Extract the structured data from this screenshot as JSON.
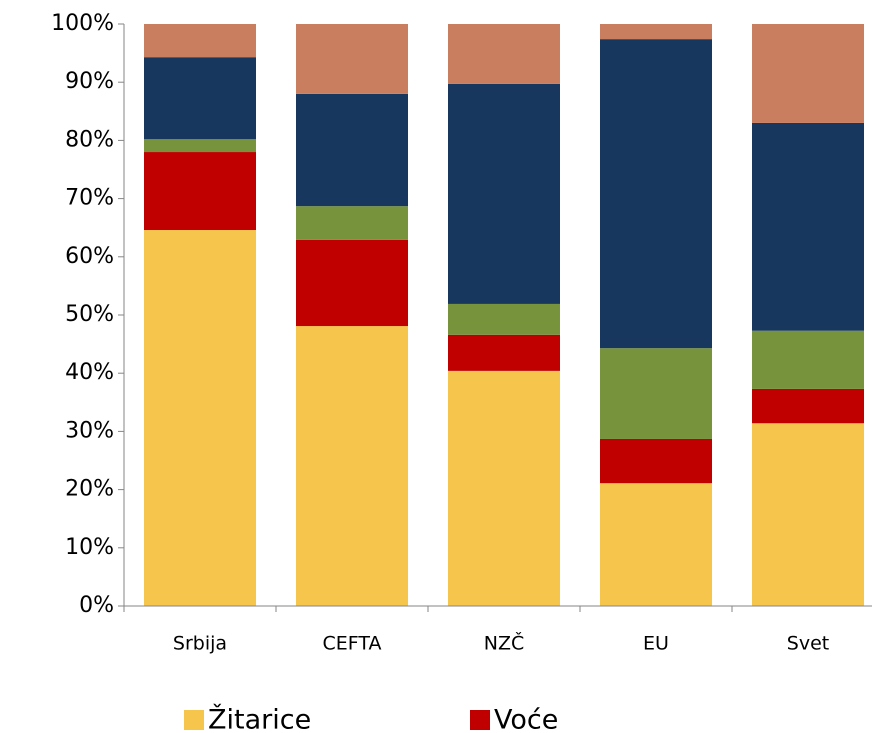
{
  "chart_data": {
    "type": "stacked_bar",
    "categories": [
      "Srbija",
      "CEFTA",
      "NZČ",
      "EU",
      "Svet"
    ],
    "series": [
      {
        "name": "Žitarice",
        "color": "#f6c54c",
        "values": [
          64.6,
          48.1,
          40.4,
          21.1,
          31.4
        ]
      },
      {
        "name": "Voće",
        "color": "#c00000",
        "values": [
          13.4,
          14.8,
          6.2,
          7.6,
          5.9
        ]
      },
      {
        "color": "#77933c",
        "values": [
          2.2,
          5.8,
          5.3,
          15.6,
          10.0
        ]
      },
      {
        "color": "#17375e",
        "values": [
          14.1,
          19.3,
          37.8,
          53.1,
          35.7
        ]
      },
      {
        "color": "#c97e5f",
        "values": [
          5.7,
          12.0,
          10.3,
          2.6,
          17.0
        ]
      }
    ],
    "ylim": [
      0,
      100
    ],
    "yticks": [
      {
        "value": 0,
        "label": "0%"
      },
      {
        "value": 10,
        "label": "10%"
      },
      {
        "value": 20,
        "label": "20%"
      },
      {
        "value": 30,
        "label": "30%"
      },
      {
        "value": 40,
        "label": "40%"
      },
      {
        "value": 50,
        "label": "50%"
      },
      {
        "value": 60,
        "label": "60%"
      },
      {
        "value": 70,
        "label": "70%"
      },
      {
        "value": 80,
        "label": "80%"
      },
      {
        "value": 90,
        "label": "90%"
      },
      {
        "value": 100,
        "label": "100%"
      }
    ],
    "legend": "bottom"
  }
}
